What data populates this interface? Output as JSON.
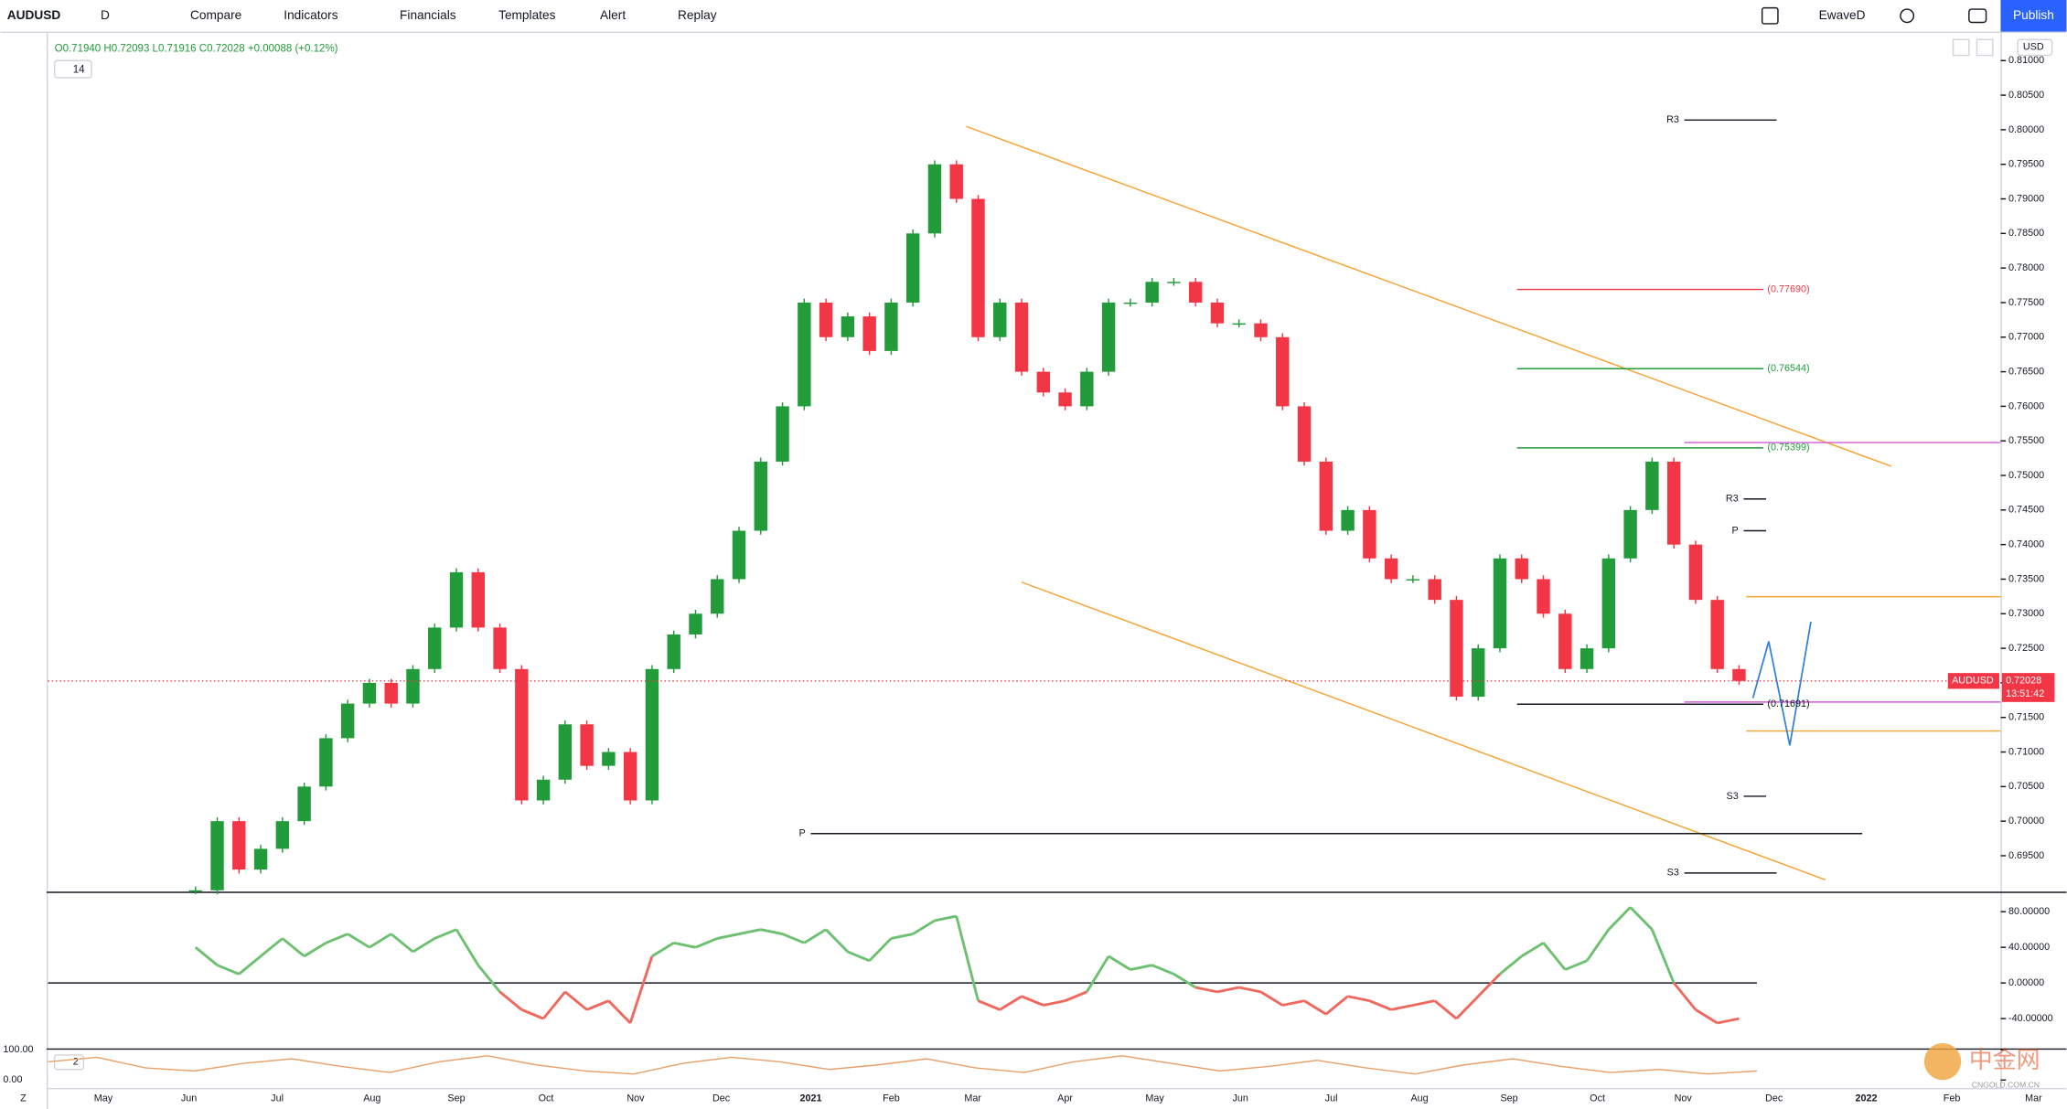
{
  "toolbar": {
    "symbol": "AUDUSD",
    "interval": "D",
    "buttons": [
      "Compare",
      "Indicators",
      "Financials",
      "Templates",
      "Alert",
      "Replay"
    ],
    "user": "EwaveD",
    "publish": "Publish"
  },
  "legend": {
    "ohlc": "O0.71940 H0.72093 L0.71916 C0.72028 +0.00088 (+0.12%)",
    "length": 14
  },
  "currency": "USD",
  "time_axis": [
    "May",
    "Jun",
    "Jul",
    "Aug",
    "Sep",
    "Oct",
    "Nov",
    "Dec",
    "2021",
    "Feb",
    "Mar",
    "Apr",
    "May",
    "Jun",
    "Jul",
    "Aug",
    "Sep",
    "Oct",
    "Nov",
    "Dec",
    "2022",
    "Feb",
    "Mar"
  ],
  "watermark": {
    "name": "中金网",
    "site": "CNGOLD.COM.CN"
  },
  "chart_data": [
    {
      "type": "candlestick",
      "series": [
        {
          "name": "AUDUSD",
          "rise_color": "#229b3a",
          "fall_color": "#f23645",
          "values": [
            0.69,
            0.7,
            0.693,
            0.696,
            0.7,
            0.705,
            0.712,
            0.717,
            0.72,
            0.717,
            0.722,
            0.728,
            0.736,
            0.728,
            0.722,
            0.703,
            0.706,
            0.714,
            0.708,
            0.71,
            0.703,
            0.722,
            0.727,
            0.73,
            0.735,
            0.742,
            0.752,
            0.76,
            0.775,
            0.77,
            0.773,
            0.768,
            0.775,
            0.785,
            0.795,
            0.79,
            0.77,
            0.775,
            0.765,
            0.762,
            0.76,
            0.765,
            0.775,
            0.775,
            0.778,
            0.778,
            0.775,
            0.772,
            0.772,
            0.77,
            0.76,
            0.752,
            0.742,
            0.745,
            0.738,
            0.735,
            0.735,
            0.732,
            0.718,
            0.725,
            0.738,
            0.735,
            0.73,
            0.722,
            0.725,
            0.738,
            0.745,
            0.752,
            0.74,
            0.732,
            0.722,
            0.72028
          ]
        }
      ],
      "last_price": {
        "value": 0.72028,
        "countdown": "13:51:42",
        "color": "#f23645"
      },
      "ylim": [
        0.6898,
        0.814
      ],
      "yticks": [
        {
          "value": 0.81,
          "label": "0.81000"
        },
        {
          "value": 0.805,
          "label": "0.80500"
        },
        {
          "value": 0.8,
          "label": "0.80000"
        },
        {
          "value": 0.795,
          "label": "0.79500"
        },
        {
          "value": 0.79,
          "label": "0.79000"
        },
        {
          "value": 0.785,
          "label": "0.78500"
        },
        {
          "value": 0.78,
          "label": "0.78000"
        },
        {
          "value": 0.775,
          "label": "0.77500"
        },
        {
          "value": 0.77,
          "label": "0.77000"
        },
        {
          "value": 0.765,
          "label": "0.76500"
        },
        {
          "value": 0.76,
          "label": "0.76000"
        },
        {
          "value": 0.755,
          "label": "0.75500"
        },
        {
          "value": 0.75,
          "label": "0.75000"
        },
        {
          "value": 0.745,
          "label": "0.74500"
        },
        {
          "value": 0.74,
          "label": "0.74000"
        },
        {
          "value": 0.735,
          "label": "0.73500"
        },
        {
          "value": 0.73,
          "label": "0.73000"
        },
        {
          "value": 0.725,
          "label": "0.72500"
        },
        {
          "value": 0.72,
          "label": "0.72000"
        },
        {
          "value": 0.715,
          "label": "0.71500"
        },
        {
          "value": 0.71,
          "label": "0.71000"
        },
        {
          "value": 0.705,
          "label": "0.70500"
        },
        {
          "value": 0.7,
          "label": "0.70000"
        },
        {
          "value": 0.695,
          "label": "0.69500"
        }
      ],
      "levels": [
        {
          "value": 0.7769,
          "label": "(0.77690)",
          "color": "#f23645"
        },
        {
          "value": 0.76544,
          "label": "(0.76544)",
          "color": "#229b3a"
        },
        {
          "value": 0.75399,
          "label": "(0.75399)",
          "color": "#229b3a"
        },
        {
          "value": 0.71691,
          "label": "(0.71691)",
          "color": "#131722"
        }
      ],
      "pivots": [
        {
          "label": "R3",
          "value": 0.8014,
          "span": "long"
        },
        {
          "label": "P",
          "value": 0.6982,
          "span": "long"
        },
        {
          "label": "S3",
          "value": 0.6925,
          "span": "long"
        },
        {
          "label": "R3",
          "value": 0.7466,
          "span": "short"
        },
        {
          "label": "P",
          "value": 0.742,
          "span": "short"
        },
        {
          "label": "S3",
          "value": 0.7036,
          "span": "short"
        }
      ]
    },
    {
      "type": "line",
      "series": [
        {
          "name": "momentum",
          "rise_color": "#6cc070",
          "fall_color": "#f0675e",
          "values": [
            40,
            20,
            10,
            30,
            50,
            30,
            45,
            55,
            40,
            55,
            35,
            50,
            60,
            20,
            -10,
            -30,
            -40,
            -10,
            -30,
            -20,
            -45,
            30,
            45,
            40,
            50,
            55,
            60,
            55,
            45,
            60,
            35,
            25,
            50,
            55,
            70,
            75,
            -20,
            -30,
            -15,
            -25,
            -20,
            -10,
            30,
            15,
            20,
            10,
            -5,
            -10,
            -5,
            -10,
            -25,
            -20,
            -35,
            -15,
            -20,
            -30,
            -25,
            -20,
            -40,
            -15,
            10,
            30,
            45,
            15,
            25,
            60,
            85,
            60,
            0,
            -30,
            -45,
            -40
          ]
        }
      ],
      "ylim": [
        -72,
        101
      ],
      "yticks": [
        {
          "value": 80,
          "label": "80.00000"
        },
        {
          "value": 40,
          "label": "40.00000"
        },
        {
          "value": 0,
          "label": "0.00000"
        },
        {
          "value": -40,
          "label": "-40.00000"
        }
      ]
    },
    {
      "type": "line",
      "label": "2",
      "series": [
        {
          "name": "stoch",
          "color": "#e8a06a",
          "values": [
            60,
            75,
            40,
            30,
            55,
            70,
            45,
            25,
            60,
            80,
            50,
            30,
            20,
            55,
            75,
            60,
            35,
            50,
            70,
            40,
            25,
            60,
            80,
            55,
            30,
            45,
            65,
            40,
            20,
            50,
            70,
            45,
            25,
            35,
            20,
            30
          ]
        }
      ],
      "ylim": [
        -26,
        100
      ],
      "yticks": [
        {
          "value": 100,
          "label": "100.00"
        },
        {
          "value": 0,
          "label": "0.00"
        }
      ]
    }
  ]
}
